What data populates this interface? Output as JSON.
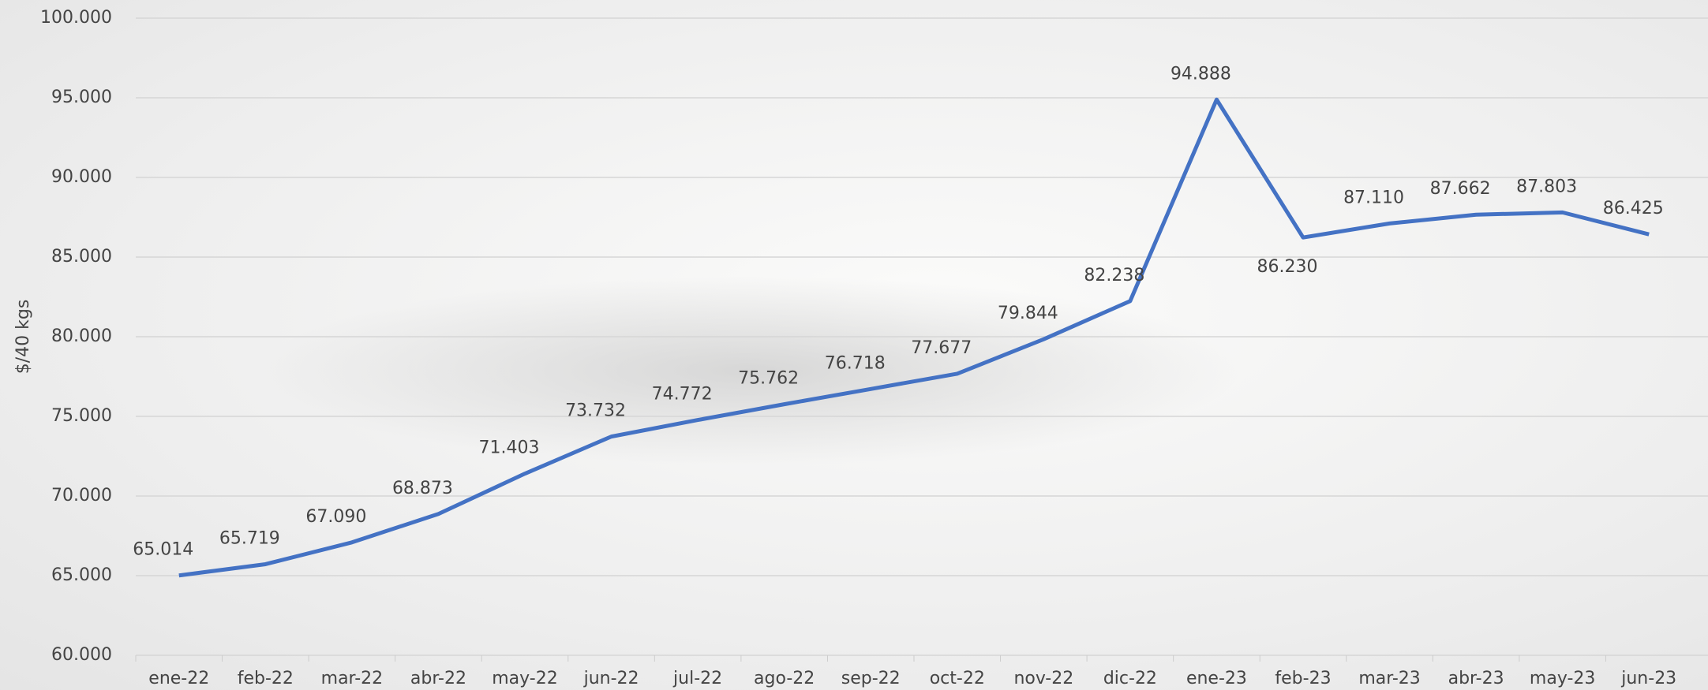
{
  "chart_data": {
    "type": "line",
    "y_label": "$/40 kgs",
    "categories": [
      "ene-22",
      "feb-22",
      "mar-22",
      "abr-22",
      "may-22",
      "jun-22",
      "jul-22",
      "ago-22",
      "sep-22",
      "oct-22",
      "nov-22",
      "dic-22",
      "ene-23",
      "feb-23",
      "mar-23",
      "abr-23",
      "may-23",
      "jun-23"
    ],
    "series": [
      {
        "color": "#4472c4",
        "values": [
          65014,
          65719,
          67090,
          68873,
          71403,
          73732,
          74772,
          75762,
          76718,
          77677,
          79844,
          82238,
          94888,
          86230,
          87110,
          87662,
          87803,
          86425
        ],
        "value_labels": [
          "65.014",
          "65.719",
          "67.090",
          "68.873",
          "71.403",
          "73.732",
          "74.772",
          "75.762",
          "76.718",
          "77.677",
          "79.844",
          "82.238",
          "94.888",
          "86.230",
          "87.110",
          "87.662",
          "87.803",
          "86.425"
        ]
      }
    ],
    "ylim": [
      60000,
      100000
    ],
    "yticks": [
      {
        "value": 60000,
        "label": "60.000"
      },
      {
        "value": 65000,
        "label": "65.000"
      },
      {
        "value": 70000,
        "label": "70.000"
      },
      {
        "value": 75000,
        "label": "75.000"
      },
      {
        "value": 80000,
        "label": "80.000"
      },
      {
        "value": 85000,
        "label": "85.000"
      },
      {
        "value": 90000,
        "label": "90.000"
      },
      {
        "value": 95000,
        "label": "95.000"
      },
      {
        "value": 100000,
        "label": "100.000"
      }
    ],
    "grid": true
  }
}
